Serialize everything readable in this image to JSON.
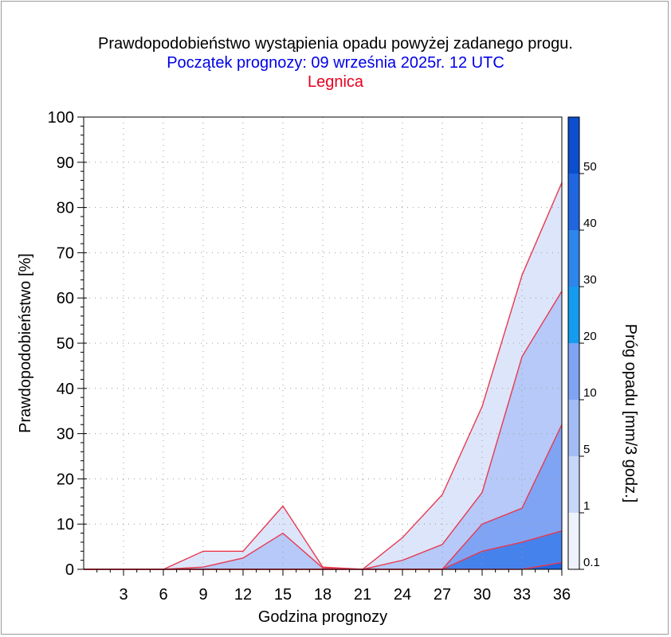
{
  "title": "Prawdopodobieństwo wystąpienia opadu powyżej zadanego progu.",
  "subtitle": "Początek prognozy: 09 września 2025r. 12 UTC",
  "location": "Legnica",
  "colors": {
    "title": "#000000",
    "subtitle": "#0000e6",
    "location": "#e6001e",
    "series_line": "#e8394f"
  },
  "chart_data": {
    "type": "area",
    "title": "Prawdopodobieństwo wystąpienia opadu powyżej zadanego progu.",
    "xlabel": "Godzina prognozy",
    "ylabel": "Prawdopodobieństwo [%]",
    "xlim": [
      0,
      36
    ],
    "ylim": [
      0,
      100
    ],
    "x_ticks": [
      3,
      6,
      9,
      12,
      15,
      18,
      21,
      24,
      27,
      30,
      33,
      36
    ],
    "y_ticks": [
      0,
      10,
      20,
      30,
      40,
      50,
      60,
      70,
      80,
      90,
      100
    ],
    "grid": true,
    "x": [
      0,
      3,
      6,
      9,
      12,
      15,
      18,
      21,
      24,
      27,
      30,
      33,
      36
    ],
    "series": [
      {
        "name": "0.1",
        "color": "#dde5fb",
        "values": [
          0,
          0,
          0,
          4,
          4,
          14,
          0.5,
          0,
          7,
          16.5,
          36,
          65,
          85.5
        ]
      },
      {
        "name": "1",
        "color": "#b6c9f8",
        "values": [
          0,
          0,
          0,
          0.5,
          2.5,
          8,
          0.3,
          0,
          2,
          5.5,
          17,
          47,
          61.5
        ]
      },
      {
        "name": "5",
        "color": "#7fa4f4",
        "values": [
          0,
          0,
          0,
          0,
          0,
          0,
          0,
          0,
          0,
          0,
          10,
          13.5,
          32
        ]
      },
      {
        "name": "10",
        "color": "#4682ec",
        "values": [
          0,
          0,
          0,
          0,
          0,
          0,
          0,
          0,
          0,
          0,
          4,
          6,
          8.5
        ]
      },
      {
        "name": "20",
        "color": "#1f66e0",
        "values": [
          0,
          0,
          0,
          0,
          0,
          0,
          0,
          0,
          0,
          0,
          0,
          0,
          1.5
        ]
      }
    ],
    "colorbar": {
      "label": "Próg opadu [mm/3 godz.]",
      "tick_labels": [
        "0.1",
        "1",
        "5",
        "10",
        "20",
        "30",
        "40",
        "50"
      ],
      "segments": [
        {
          "from": 0,
          "to": 1,
          "color": "#eef2fd"
        },
        {
          "from": 1,
          "to": 2,
          "color": "#c7d6f9"
        },
        {
          "from": 2,
          "to": 3,
          "color": "#a3bcf6"
        },
        {
          "from": 3,
          "to": 4,
          "color": "#7fa4f4"
        },
        {
          "from": 4,
          "to": 5,
          "color": "#149cf0"
        },
        {
          "from": 5,
          "to": 6,
          "color": "#2d86ec"
        },
        {
          "from": 6,
          "to": 7,
          "color": "#1f66e0"
        },
        {
          "from": 7,
          "to": 8,
          "color": "#0b4fcf"
        }
      ],
      "levels": 8
    }
  }
}
